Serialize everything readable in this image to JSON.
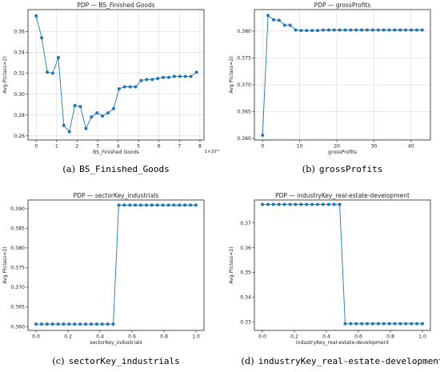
{
  "panels": [
    {
      "caption_letter": "(a)",
      "caption_var": "BS_Finished_Goods",
      "multiplier": "1×10¹⁰",
      "chart_data": {
        "type": "line",
        "title": "PDP — BS_Finished Goods",
        "xlabel": "BS_Finished Goods",
        "ylabel": "Avg P(class=2)",
        "xlim": [
          -0.4,
          8.2
        ],
        "ylim": [
          0.256,
          0.381
        ],
        "xticks": [
          0,
          1,
          2,
          3,
          4,
          5,
          6,
          7,
          8
        ],
        "xtick_labels": [
          "0",
          "1",
          "2",
          "3",
          "4",
          "5",
          "6",
          "7",
          "8"
        ],
        "yticks": [
          0.26,
          0.28,
          0.3,
          0.32,
          0.34,
          0.36
        ],
        "ytick_labels": [
          "0.26",
          "0.28",
          "0.30",
          "0.32",
          "0.34",
          "0.36"
        ],
        "grid": true,
        "x": [
          0,
          0.27,
          0.54,
          0.81,
          1.08,
          1.35,
          1.62,
          1.89,
          2.16,
          2.43,
          2.7,
          2.97,
          3.24,
          3.51,
          3.78,
          4.05,
          4.32,
          4.59,
          4.86,
          5.13,
          5.4,
          5.67,
          5.94,
          6.21,
          6.48,
          6.75,
          7.02,
          7.29,
          7.56,
          7.83
        ],
        "y": [
          0.375,
          0.354,
          0.321,
          0.32,
          0.335,
          0.27,
          0.264,
          0.289,
          0.288,
          0.267,
          0.278,
          0.282,
          0.279,
          0.282,
          0.286,
          0.305,
          0.307,
          0.307,
          0.307,
          0.313,
          0.314,
          0.314,
          0.315,
          0.316,
          0.316,
          0.317,
          0.317,
          0.317,
          0.317,
          0.321
        ]
      }
    },
    {
      "caption_letter": "(b)",
      "caption_var": "grossProfits",
      "multiplier": "",
      "chart_data": {
        "type": "line",
        "title": "PDP — grossProfits",
        "xlabel": "grossProfits",
        "ylabel": "Avg P(class=2)",
        "xlim": [
          -2.2,
          45.2
        ],
        "ylim": [
          0.3597,
          0.384
        ],
        "xticks": [
          0,
          10,
          20,
          30,
          40
        ],
        "xtick_labels": [
          "0",
          "10",
          "20",
          "30",
          "40"
        ],
        "yticks": [
          0.36,
          0.365,
          0.37,
          0.375,
          0.38
        ],
        "ytick_labels": [
          "0.360",
          "0.365",
          "0.370",
          "0.375",
          "0.380"
        ],
        "grid": true,
        "x": [
          0,
          1.48,
          2.97,
          4.45,
          5.93,
          7.41,
          8.9,
          10.38,
          11.86,
          13.34,
          14.83,
          16.31,
          17.79,
          19.28,
          20.76,
          22.24,
          23.72,
          25.21,
          26.69,
          28.17,
          29.66,
          31.14,
          32.62,
          34.1,
          35.59,
          37.07,
          38.55,
          40.03,
          41.52,
          43.0
        ],
        "y": [
          0.3606,
          0.3829,
          0.3821,
          0.382,
          0.3811,
          0.3811,
          0.3802,
          0.3801,
          0.3801,
          0.3801,
          0.3801,
          0.3802,
          0.3802,
          0.3802,
          0.3802,
          0.3802,
          0.3802,
          0.3802,
          0.3802,
          0.3802,
          0.3802,
          0.3802,
          0.3802,
          0.3802,
          0.3802,
          0.3802,
          0.3802,
          0.3802,
          0.3802,
          0.3802
        ]
      }
    },
    {
      "caption_letter": "(c)",
      "caption_var": "sectorKey_industrials",
      "multiplier": "",
      "chart_data": {
        "type": "line",
        "title": "PDP — sectorKey_industrials",
        "xlabel": "sectorKey_industrials",
        "ylabel": "Avg P(class=2)",
        "xlim": [
          -0.05,
          1.05
        ],
        "ylim": [
          0.359,
          0.3922
        ],
        "xticks": [
          0.0,
          0.2,
          0.4,
          0.6,
          0.8,
          1.0
        ],
        "xtick_labels": [
          "0.0",
          "0.2",
          "0.4",
          "0.6",
          "0.8",
          "1.0"
        ],
        "yticks": [
          0.36,
          0.365,
          0.37,
          0.375,
          0.38,
          0.385,
          0.39
        ],
        "ytick_labels": [
          "0.360",
          "0.365",
          "0.370",
          "0.375",
          "0.380",
          "0.385",
          "0.390"
        ],
        "grid": false,
        "x": [
          0,
          0.0345,
          0.069,
          0.1034,
          0.1379,
          0.1724,
          0.2069,
          0.2414,
          0.2759,
          0.3103,
          0.3448,
          0.3793,
          0.4138,
          0.4483,
          0.4828,
          0.5172,
          0.5517,
          0.5862,
          0.6207,
          0.6552,
          0.6897,
          0.7241,
          0.7586,
          0.7931,
          0.8276,
          0.8621,
          0.8966,
          0.931,
          0.9655,
          1.0
        ],
        "y": [
          0.3606,
          0.3606,
          0.3606,
          0.3606,
          0.3606,
          0.3606,
          0.3606,
          0.3606,
          0.3606,
          0.3606,
          0.3606,
          0.3606,
          0.3606,
          0.3606,
          0.3606,
          0.3909,
          0.3909,
          0.3909,
          0.3909,
          0.3909,
          0.3909,
          0.3909,
          0.3909,
          0.3909,
          0.3909,
          0.3909,
          0.3909,
          0.3909,
          0.3909,
          0.3909
        ]
      }
    },
    {
      "caption_letter": "(d)",
      "caption_var": "industryKey_real-estate-development",
      "multiplier": "",
      "chart_data": {
        "type": "line",
        "title": "PDP — industryKey_real-estate-development",
        "xlabel": "industryKey_real-estate-development",
        "ylabel": "Avg P(class=2)",
        "xlim": [
          -0.05,
          1.05
        ],
        "ylim": [
          0.3265,
          0.3793
        ],
        "xticks": [
          0.0,
          0.2,
          0.4,
          0.6,
          0.8,
          1.0
        ],
        "xtick_labels": [
          "0.0",
          "0.2",
          "0.4",
          "0.6",
          "0.8",
          "1.0"
        ],
        "yticks": [
          0.33,
          0.34,
          0.35,
          0.36,
          0.37
        ],
        "ytick_labels": [
          "0.33",
          "0.34",
          "0.35",
          "0.36",
          "0.37"
        ],
        "grid": false,
        "x": [
          0,
          0.0345,
          0.069,
          0.1034,
          0.1379,
          0.1724,
          0.2069,
          0.2414,
          0.2759,
          0.3103,
          0.3448,
          0.3793,
          0.4138,
          0.4483,
          0.4828,
          0.5172,
          0.5517,
          0.5862,
          0.6207,
          0.6552,
          0.6897,
          0.7241,
          0.7586,
          0.7931,
          0.8276,
          0.8621,
          0.8966,
          0.931,
          0.9655,
          1.0
        ],
        "y": [
          0.3775,
          0.3775,
          0.3775,
          0.3775,
          0.3775,
          0.3775,
          0.3775,
          0.3775,
          0.3775,
          0.3775,
          0.3775,
          0.3775,
          0.3775,
          0.3775,
          0.3775,
          0.3292,
          0.3292,
          0.3292,
          0.3292,
          0.3292,
          0.3292,
          0.3292,
          0.3292,
          0.3292,
          0.3292,
          0.3292,
          0.3292,
          0.3292,
          0.3292,
          0.3292
        ]
      }
    }
  ],
  "colors": {
    "line": "#1f77b4",
    "grid": "#d9d9d9",
    "axis": "#222222"
  }
}
